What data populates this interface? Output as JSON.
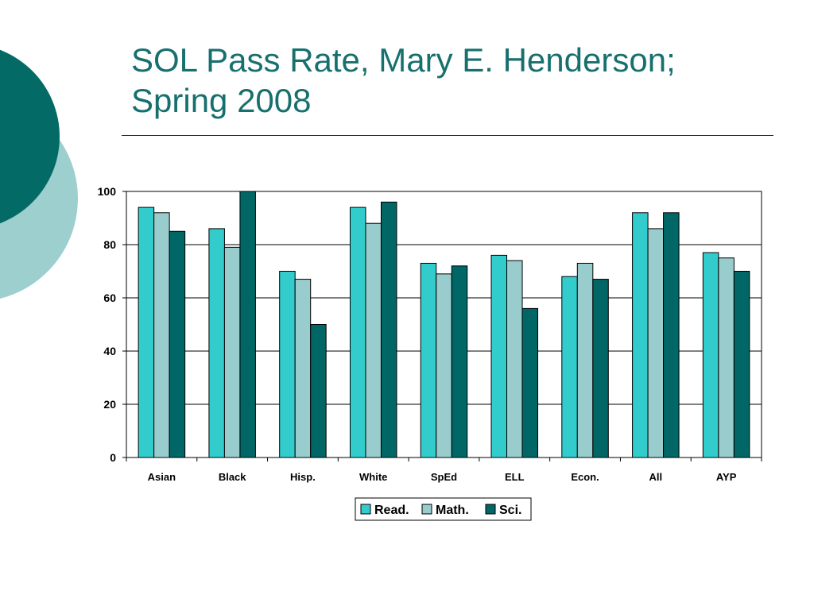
{
  "slide": {
    "title_line1": "SOL Pass Rate, Mary E. Henderson;",
    "title_line2": "Spring 2008"
  },
  "colors": {
    "title": "#17706e",
    "deco_dark": "#046A66",
    "deco_light": "#9CCFCE"
  },
  "chart_data": {
    "type": "bar",
    "title": "",
    "xlabel": "",
    "ylabel": "",
    "ylim": [
      0,
      100
    ],
    "yticks": [
      0,
      20,
      40,
      60,
      80,
      100
    ],
    "grid": true,
    "legend_position": "bottom",
    "categories": [
      "Asian",
      "Black",
      "Hisp.",
      "White",
      "SpEd",
      "ELL",
      "Econ.",
      "All",
      "AYP"
    ],
    "series": [
      {
        "name": "Read.",
        "color": "#33CCCC",
        "values": [
          94,
          86,
          70,
          94,
          73,
          76,
          68,
          92,
          77
        ]
      },
      {
        "name": "Math.",
        "color": "#99CCCC",
        "values": [
          92,
          79,
          67,
          88,
          69,
          74,
          73,
          86,
          75
        ]
      },
      {
        "name": "Sci.",
        "color": "#006666",
        "values": [
          85,
          100,
          50,
          96,
          72,
          56,
          67,
          92,
          70
        ]
      }
    ]
  }
}
